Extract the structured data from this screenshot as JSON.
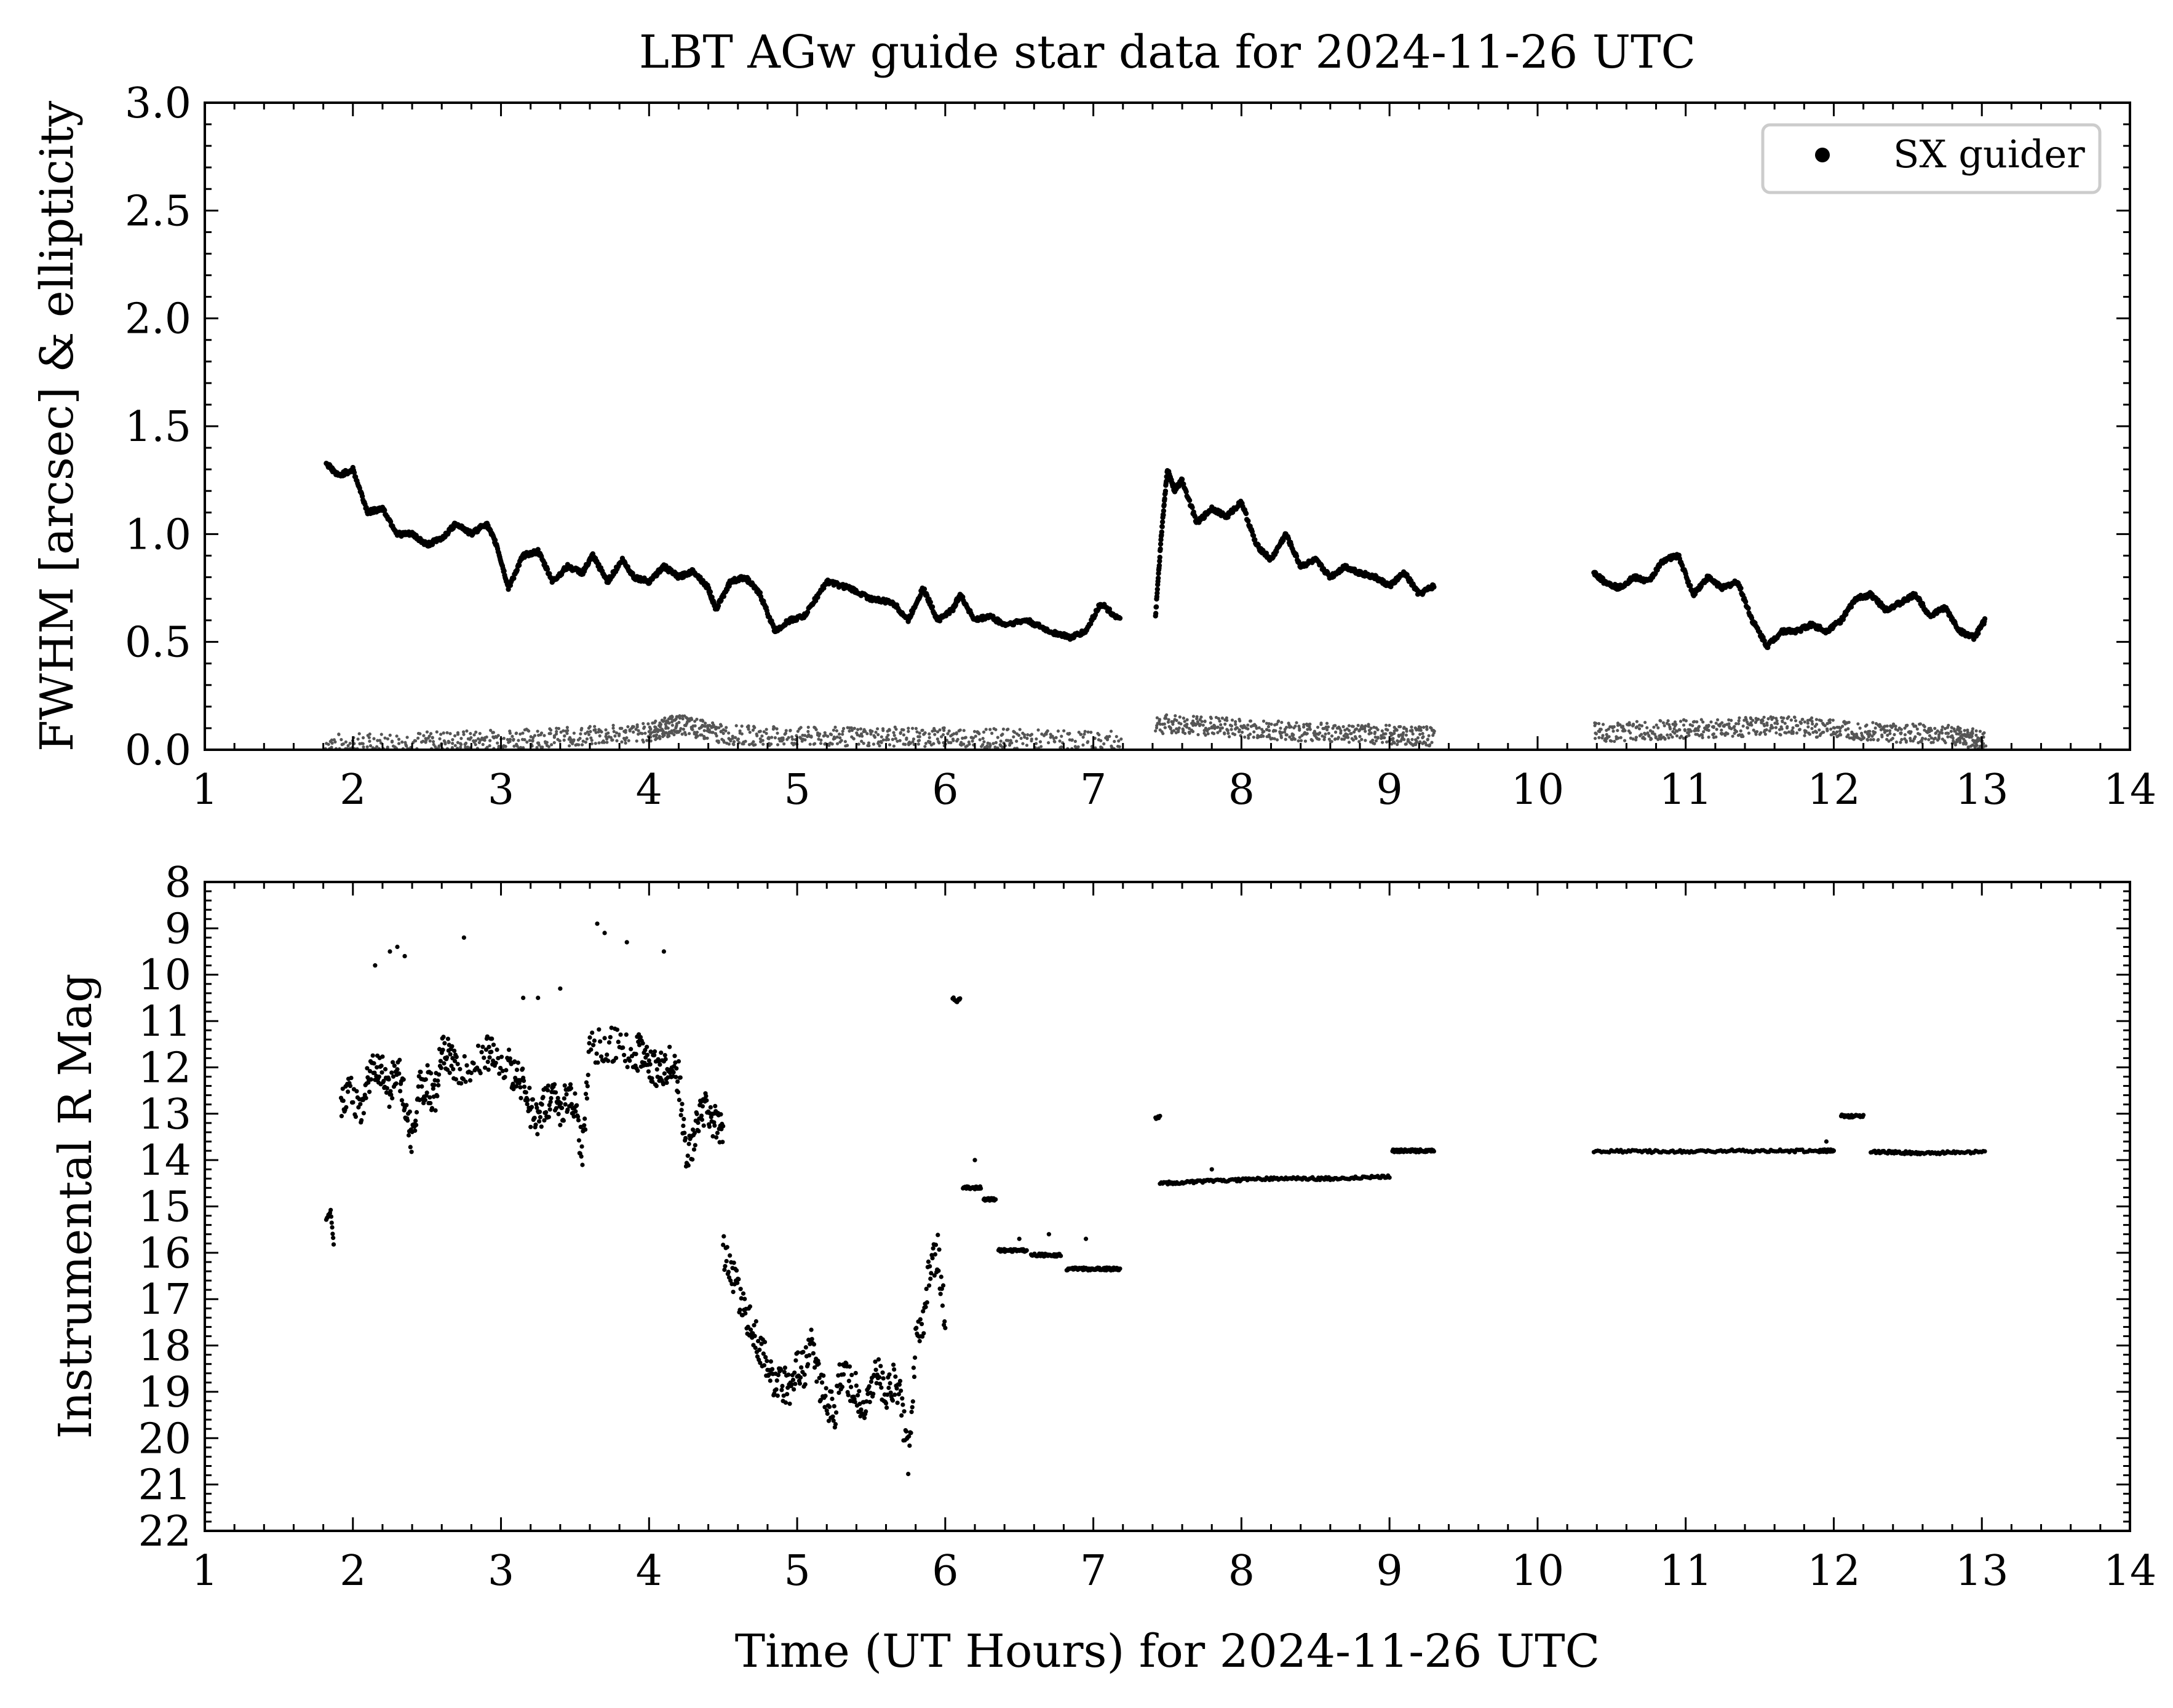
{
  "figure": {
    "title": "LBT AGw guide star data for 2024-11-26 UTC"
  },
  "chart_data": [
    {
      "type": "scatter",
      "panel": "top",
      "ylabel": "FWHM [arcsec] & ellipticity",
      "xlim": [
        1,
        14
      ],
      "ylim": [
        0,
        3.0
      ],
      "xticks": [
        1,
        2,
        3,
        4,
        5,
        6,
        7,
        8,
        9,
        10,
        11,
        12,
        13,
        14
      ],
      "yticks": [
        "0.0",
        "0.5",
        "1.0",
        "1.5",
        "2.0",
        "2.5",
        "3.0"
      ],
      "legend": {
        "label": "SX guider",
        "placement": "top-right"
      },
      "colors": {
        "fwhm": "#000000",
        "ellipticity": "#555555"
      },
      "series": [
        {
          "name": "SX guider",
          "role": "FWHM",
          "segments": [
            {
              "x": [
                1.82,
                1.9,
                2.0,
                2.1,
                2.2,
                2.3,
                2.4,
                2.5,
                2.6,
                2.7,
                2.8,
                2.9,
                2.97,
                3.05,
                3.15,
                3.25,
                3.35,
                3.45,
                3.55,
                3.62,
                3.72,
                3.82,
                3.9,
                4.0,
                4.1,
                4.2,
                4.3,
                4.4,
                4.45,
                4.55,
                4.65,
                4.75,
                4.85,
                4.95,
                5.05,
                5.2,
                5.35,
                5.5,
                5.65,
                5.75,
                5.85,
                5.95,
                6.05,
                6.1,
                6.2,
                6.3,
                6.4,
                6.55,
                6.7,
                6.85,
                6.95,
                7.05,
                7.18
              ],
              "y": [
                1.33,
                1.27,
                1.3,
                1.1,
                1.12,
                1.0,
                1.0,
                0.95,
                0.98,
                1.05,
                1.0,
                1.05,
                0.95,
                0.75,
                0.9,
                0.92,
                0.78,
                0.85,
                0.82,
                0.9,
                0.78,
                0.88,
                0.8,
                0.78,
                0.85,
                0.8,
                0.83,
                0.75,
                0.65,
                0.78,
                0.8,
                0.72,
                0.55,
                0.6,
                0.62,
                0.78,
                0.75,
                0.7,
                0.68,
                0.6,
                0.75,
                0.6,
                0.65,
                0.72,
                0.6,
                0.62,
                0.58,
                0.6,
                0.55,
                0.52,
                0.55,
                0.68,
                0.6
              ]
            },
            {
              "x": [
                7.42,
                7.46,
                7.5,
                7.55,
                7.6,
                7.7,
                7.8,
                7.9,
                8.0,
                8.1,
                8.2,
                8.3,
                8.4,
                8.5,
                8.6,
                8.7,
                8.8,
                8.9,
                9.0,
                9.1,
                9.2,
                9.3
              ],
              "y": [
                0.62,
                1.0,
                1.3,
                1.2,
                1.25,
                1.05,
                1.12,
                1.08,
                1.15,
                0.95,
                0.88,
                1.0,
                0.85,
                0.88,
                0.8,
                0.85,
                0.82,
                0.8,
                0.76,
                0.82,
                0.72,
                0.76
              ]
            },
            {
              "x": [
                10.38,
                10.45,
                10.55,
                10.65,
                10.75,
                10.85,
                10.95,
                11.05,
                11.15,
                11.25,
                11.35,
                11.45,
                11.55,
                11.65,
                11.75,
                11.85,
                11.95,
                12.05,
                12.15,
                12.25,
                12.35,
                12.45,
                12.55,
                12.65,
                12.75,
                12.85,
                12.95,
                13.02
              ],
              "y": [
                0.82,
                0.78,
                0.75,
                0.8,
                0.78,
                0.88,
                0.9,
                0.72,
                0.8,
                0.75,
                0.78,
                0.6,
                0.48,
                0.55,
                0.55,
                0.58,
                0.55,
                0.6,
                0.7,
                0.72,
                0.65,
                0.68,
                0.72,
                0.62,
                0.66,
                0.55,
                0.52,
                0.6
              ]
            }
          ]
        },
        {
          "role": "ellipticity",
          "segments": [
            {
              "x": [
                1.82,
                2.5,
                3.0,
                3.5,
                4.0,
                4.2,
                4.5,
                5.0,
                5.5,
                6.0,
                6.5,
                7.18
              ],
              "y": [
                0.03,
                0.04,
                0.05,
                0.06,
                0.08,
                0.12,
                0.07,
                0.06,
                0.06,
                0.06,
                0.05,
                0.04
              ]
            },
            {
              "x": [
                7.42,
                7.8,
                8.2,
                8.6,
                9.0,
                9.3
              ],
              "y": [
                0.12,
                0.11,
                0.09,
                0.08,
                0.07,
                0.06
              ]
            },
            {
              "x": [
                10.38,
                10.8,
                11.2,
                11.6,
                12.0,
                12.4,
                12.8,
                13.02
              ],
              "y": [
                0.08,
                0.09,
                0.1,
                0.11,
                0.1,
                0.08,
                0.07,
                0.04
              ]
            }
          ]
        }
      ]
    },
    {
      "type": "scatter",
      "panel": "bottom",
      "xlabel": "Time (UT Hours) for 2024-11-26 UTC",
      "ylabel": "Instrumental R Mag",
      "xlim": [
        1,
        14
      ],
      "ylim": [
        22,
        8
      ],
      "y_inverted": true,
      "xticks": [
        1,
        2,
        3,
        4,
        5,
        6,
        7,
        8,
        9,
        10,
        11,
        12,
        13,
        14
      ],
      "yticks": [
        8,
        9,
        10,
        11,
        12,
        13,
        14,
        15,
        16,
        17,
        18,
        19,
        20,
        21,
        22
      ],
      "colors": {
        "points": "#000000"
      },
      "series": [
        {
          "segments": [
            {
              "x": [
                1.82,
                1.85,
                1.87
              ],
              "y": [
                15.3,
                15.1,
                15.8
              ]
            },
            {
              "x": [
                1.92,
                1.97,
                2.05,
                2.1,
                2.15,
                2.2,
                2.25,
                2.3,
                2.35,
                2.4,
                2.45,
                2.5,
                2.55,
                2.6,
                2.65,
                2.7,
                2.8,
                2.9,
                2.95,
                3.05,
                3.1,
                3.15,
                3.2,
                3.25,
                3.3,
                3.35,
                3.4,
                3.45,
                3.5,
                3.55,
                3.6,
                3.7,
                3.8,
                3.9,
                3.95,
                4.0,
                4.05,
                4.1,
                4.15,
                4.2,
                4.25,
                4.3,
                4.35,
                4.4,
                4.45,
                4.5
              ],
              "y": [
                12.8,
                12.5,
                13.0,
                12.3,
                11.9,
                12.0,
                12.5,
                11.9,
                12.8,
                13.5,
                12.5,
                12.3,
                12.7,
                11.6,
                11.7,
                12.0,
                12.0,
                11.7,
                11.8,
                12.0,
                12.2,
                12.4,
                12.9,
                13.1,
                12.8,
                12.7,
                12.9,
                12.6,
                12.9,
                13.8,
                11.6,
                11.5,
                11.5,
                11.8,
                11.6,
                11.9,
                12.1,
                12.0,
                11.9,
                12.2,
                13.8,
                13.6,
                12.8,
                13.0,
                13.2,
                13.4
              ]
            },
            {
              "x": [
                4.5,
                4.55,
                4.6,
                4.65,
                4.7,
                4.75,
                4.8,
                4.85,
                4.9,
                4.95,
                5.0,
                5.05,
                5.1,
                5.15,
                5.2,
                5.25,
                5.3,
                5.35,
                5.4,
                5.45,
                5.5,
                5.55,
                5.6,
                5.65,
                5.7,
                5.75,
                5.8,
                5.85,
                5.9,
                5.95,
                6.0
              ],
              "y": [
                16.0,
                16.3,
                16.8,
                17.3,
                17.6,
                18.0,
                18.5,
                19.0,
                18.8,
                18.9,
                18.4,
                18.5,
                18.0,
                18.8,
                19.2,
                19.5,
                18.5,
                18.8,
                19.0,
                19.4,
                18.9,
                18.6,
                19.0,
                18.8,
                19.2,
                20.5,
                18.0,
                17.5,
                16.2,
                16.0,
                17.5
              ]
            },
            {
              "x": [
                6.05,
                6.08,
                6.1
              ],
              "y": [
                10.5,
                10.6,
                10.5
              ]
            },
            {
              "x": [
                6.12,
                6.16,
                6.2,
                6.24
              ],
              "y": [
                14.6,
                14.6,
                14.6,
                14.6
              ]
            },
            {
              "x": [
                6.26,
                6.3,
                6.34
              ],
              "y": [
                14.85,
                14.85,
                14.85
              ]
            },
            {
              "x": [
                6.36,
                6.45,
                6.55
              ],
              "y": [
                15.95,
                15.95,
                15.95
              ]
            },
            {
              "x": [
                6.58,
                6.68,
                6.78
              ],
              "y": [
                16.05,
                16.05,
                16.05
              ]
            },
            {
              "x": [
                6.82,
                6.95,
                7.08,
                7.18
              ],
              "y": [
                16.35,
                16.35,
                16.35,
                16.35
              ]
            },
            {
              "x": [
                7.42,
                7.45
              ],
              "y": [
                13.1,
                13.05
              ]
            },
            {
              "x": [
                7.45,
                7.8,
                8.2,
                8.6,
                9.0
              ],
              "y": [
                14.5,
                14.45,
                14.4,
                14.4,
                14.35
              ]
            },
            {
              "x": [
                9.02,
                9.15,
                9.3
              ],
              "y": [
                13.8,
                13.8,
                13.8
              ]
            },
            {
              "x": [
                10.38,
                10.9,
                11.4,
                11.9,
                12.0
              ],
              "y": [
                13.8,
                13.82,
                13.8,
                13.8,
                13.8
              ]
            },
            {
              "x": [
                12.05,
                12.12,
                12.2
              ],
              "y": [
                13.05,
                13.05,
                13.05
              ]
            },
            {
              "x": [
                12.25,
                12.6,
                13.02
              ],
              "y": [
                13.82,
                13.85,
                13.82
              ]
            }
          ],
          "outliers": {
            "x": [
              2.15,
              2.25,
              2.3,
              2.35,
              2.75,
              3.15,
              3.25,
              3.4,
              3.65,
              3.7,
              3.85,
              4.1,
              6.2,
              6.5,
              6.7,
              6.95,
              7.8,
              11.95
            ],
            "y": [
              9.8,
              9.5,
              9.4,
              9.6,
              9.2,
              10.5,
              10.5,
              10.3,
              8.9,
              9.1,
              9.3,
              9.5,
              14.0,
              15.7,
              15.6,
              15.7,
              14.2,
              13.6
            ]
          }
        }
      ]
    }
  ]
}
